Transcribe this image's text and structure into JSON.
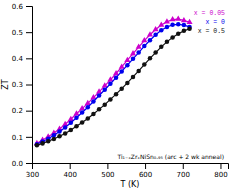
{
  "chart_data": {
    "type": "line",
    "xlabel": "T (K)",
    "ylabel": "ZT",
    "annotation": "Ti₁₋ₓZrₓNiSn₀.₉₅ (arc + 2 wk anneal)",
    "xlim": [
      300,
      820
    ],
    "ylim": [
      0.0,
      0.6
    ],
    "xticks": [
      300,
      400,
      500,
      600,
      700,
      800
    ],
    "yticks": [
      {
        "value": 0.0,
        "label": "0.0"
      },
      0.1,
      0.2,
      0.3,
      0.4,
      0.5,
      0.6
    ],
    "grid": false,
    "legend": "upper right",
    "series": [
      {
        "name": "x = 0.05",
        "color": "#cc00cc",
        "marker": "triangle",
        "x": [
          313,
          328,
          343,
          358,
          373,
          388,
          403,
          418,
          433,
          448,
          463,
          478,
          493,
          508,
          523,
          538,
          553,
          568,
          583,
          598,
          613,
          628,
          643,
          658,
          673,
          688,
          703,
          718
        ],
        "values": [
          0.075,
          0.088,
          0.1,
          0.115,
          0.13,
          0.148,
          0.167,
          0.188,
          0.208,
          0.228,
          0.25,
          0.272,
          0.295,
          0.318,
          0.342,
          0.367,
          0.393,
          0.418,
          0.443,
          0.468,
          0.49,
          0.51,
          0.527,
          0.54,
          0.548,
          0.55,
          0.545,
          0.538
        ]
      },
      {
        "name": "x = 0",
        "color": "#0000ee",
        "marker": "circle",
        "x": [
          313,
          328,
          343,
          358,
          373,
          388,
          403,
          418,
          433,
          448,
          463,
          478,
          493,
          508,
          523,
          538,
          553,
          568,
          583,
          598,
          613,
          628,
          643,
          658,
          673,
          688,
          703,
          718
        ],
        "values": [
          0.072,
          0.082,
          0.093,
          0.106,
          0.12,
          0.136,
          0.154,
          0.173,
          0.193,
          0.213,
          0.235,
          0.258,
          0.28,
          0.303,
          0.326,
          0.35,
          0.374,
          0.398,
          0.422,
          0.447,
          0.469,
          0.49,
          0.507,
          0.52,
          0.528,
          0.53,
          0.527,
          0.52
        ]
      },
      {
        "name": "x = 0.5",
        "color": "#111111",
        "marker": "circle",
        "x": [
          313,
          328,
          343,
          358,
          373,
          388,
          403,
          418,
          433,
          448,
          463,
          478,
          493,
          508,
          523,
          538,
          553,
          568,
          583,
          598,
          613,
          628,
          643,
          658,
          673,
          688,
          703,
          718
        ],
        "values": [
          0.068,
          0.075,
          0.083,
          0.092,
          0.102,
          0.113,
          0.126,
          0.14,
          0.155,
          0.17,
          0.187,
          0.205,
          0.223,
          0.243,
          0.263,
          0.284,
          0.306,
          0.329,
          0.352,
          0.376,
          0.4,
          0.422,
          0.444,
          0.463,
          0.48,
          0.494,
          0.505,
          0.513
        ]
      }
    ]
  }
}
